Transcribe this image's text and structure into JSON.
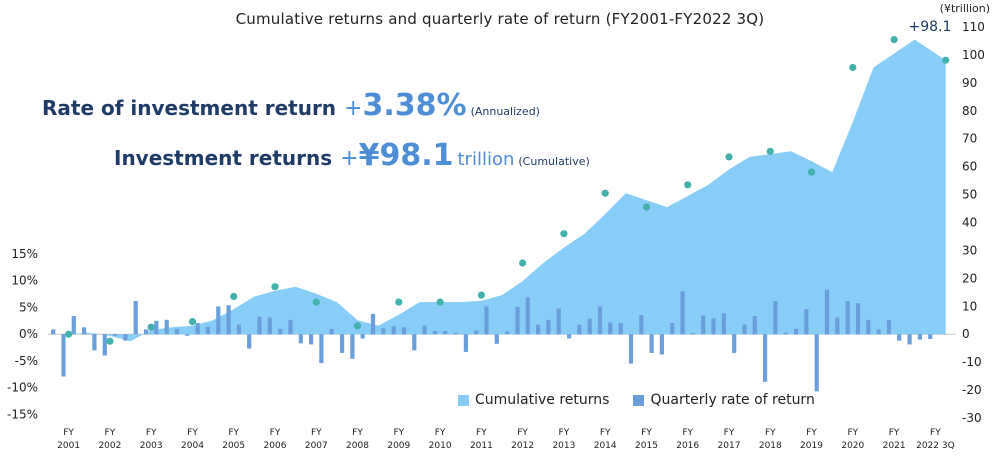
{
  "header": {
    "title": "Cumulative returns and quarterly rate of return (FY2001-FY2022 3Q)"
  },
  "kpis": {
    "rate_label": "Rate of investment return",
    "rate_sign": "+",
    "rate_value": "3.38%",
    "rate_note": "(Annualized)",
    "returns_label": "Investment returns",
    "returns_sign": "+",
    "returns_value": "¥98.1",
    "returns_unit": "trillion",
    "returns_note": "(Cumulative)"
  },
  "legend": {
    "cumulative": "Cumulative returns",
    "quarterly": "Quarterly rate of return"
  },
  "colors": {
    "area": "#88cdf7",
    "bars": "#6a9fdb",
    "markers": "#43b1ac"
  },
  "chart_data": {
    "type": "area",
    "title": "Cumulative returns and quarterly rate of return (FY2001-FY2022 3Q)",
    "x_labels": [
      {
        "fy": "FY",
        "year": "2001"
      },
      {
        "fy": "FY",
        "year": "2002"
      },
      {
        "fy": "FY",
        "year": "2003"
      },
      {
        "fy": "FY",
        "year": "2004"
      },
      {
        "fy": "FY",
        "year": "2005"
      },
      {
        "fy": "FY",
        "year": "2006"
      },
      {
        "fy": "FY",
        "year": "2007"
      },
      {
        "fy": "FY",
        "year": "2008"
      },
      {
        "fy": "FY",
        "year": "2009"
      },
      {
        "fy": "FY",
        "year": "2010"
      },
      {
        "fy": "FY",
        "year": "2011"
      },
      {
        "fy": "FY",
        "year": "2012"
      },
      {
        "fy": "FY",
        "year": "2013"
      },
      {
        "fy": "FY",
        "year": "2014"
      },
      {
        "fy": "FY",
        "year": "2015"
      },
      {
        "fy": "FY",
        "year": "2016"
      },
      {
        "fy": "FY",
        "year": "2017"
      },
      {
        "fy": "FY",
        "year": "2018"
      },
      {
        "fy": "FY",
        "year": "2019"
      },
      {
        "fy": "FY",
        "year": "2020"
      },
      {
        "fy": "FY",
        "year": "2021"
      },
      {
        "fy": "FY",
        "year": "2022 3Q"
      }
    ],
    "left_axis": {
      "label": "",
      "range": [
        -15,
        15
      ],
      "ticks": [
        "15%",
        "10%",
        "5%",
        "0%",
        "-5%",
        "-10%",
        "-15%"
      ],
      "tick_values": [
        15,
        10,
        5,
        0,
        -5,
        -10,
        -15
      ]
    },
    "right_axis": {
      "unit_label": "(¥trillion)",
      "range": [
        -30,
        110
      ],
      "ticks": [
        "110",
        "100",
        "90",
        "80",
        "70",
        "60",
        "50",
        "40",
        "30",
        "20",
        "10",
        "0",
        "-10",
        "-20",
        "-30"
      ],
      "tick_values": [
        110,
        100,
        90,
        80,
        70,
        60,
        50,
        40,
        30,
        20,
        10,
        0,
        -10,
        -20,
        -30
      ]
    },
    "series": [
      {
        "name": "Cumulative returns",
        "type": "area",
        "axis": "right",
        "x": [
          2001.5,
          2002.0,
          2002.5,
          2003.0,
          2003.5,
          2004.0,
          2004.5,
          2005.0,
          2005.5,
          2006.0,
          2006.5,
          2007.0,
          2007.5,
          2008.0,
          2008.5,
          2009.0,
          2009.5,
          2010.0,
          2010.5,
          2011.0,
          2011.5,
          2012.0,
          2012.5,
          2013.0,
          2013.5,
          2014.0,
          2014.5,
          2015.0,
          2015.5,
          2016.0,
          2016.5,
          2017.0,
          2017.5,
          2018.0,
          2018.5,
          2019.0,
          2019.5,
          2020.0,
          2020.5,
          2021.0,
          2021.5,
          2022.0,
          2022.75
        ],
        "values": [
          0,
          0.5,
          -0.6,
          -2.5,
          1.5,
          2.5,
          3,
          5,
          9,
          13.5,
          15.5,
          17,
          14.5,
          11.5,
          5,
          3,
          7,
          11.5,
          11.5,
          11.5,
          12,
          14,
          19,
          25.5,
          31,
          36,
          43,
          50.5,
          48,
          45.5,
          49.5,
          53.5,
          59,
          63.5,
          64.5,
          65.5,
          62,
          58,
          76,
          95.5,
          100.5,
          105.5,
          98.1
        ],
        "markers_x": [
          2001.5,
          2002.5,
          2003.5,
          2004.5,
          2005.5,
          2006.5,
          2007.5,
          2008.5,
          2009.5,
          2010.5,
          2011.5,
          2012.5,
          2013.5,
          2014.5,
          2015.5,
          2016.5,
          2017.5,
          2018.5,
          2019.5,
          2020.5,
          2021.5,
          2022.75
        ],
        "markers": [
          0,
          -2.5,
          2.5,
          4.5,
          13.5,
          17,
          11.5,
          3,
          11.5,
          11.5,
          14,
          25.5,
          36,
          50.5,
          45.5,
          53.5,
          63.5,
          65.5,
          58,
          95.5,
          105.5,
          98.1
        ],
        "end_label": "+98.1"
      },
      {
        "name": "Quarterly rate of return",
        "type": "bar",
        "axis": "left",
        "values": [
          0.9,
          -7.9,
          3.4,
          1.3,
          -3.0,
          -4.0,
          -0.3,
          -1.2,
          6.2,
          0.9,
          2.5,
          2.7,
          1.0,
          -0.3,
          2.1,
          1.4,
          5.2,
          5.4,
          1.8,
          -2.7,
          3.3,
          3.1,
          1.0,
          2.7,
          -1.7,
          -1.9,
          -5.4,
          1.0,
          -3.5,
          -4.6,
          -0.8,
          3.8,
          1.1,
          1.5,
          1.3,
          -3.0,
          1.6,
          0.6,
          0.6,
          0.3,
          -3.3,
          0.7,
          5.2,
          -1.8,
          0.5,
          5.1,
          6.9,
          1.8,
          2.7,
          4.8,
          -0.8,
          1.8,
          2.9,
          5.2,
          2.2,
          2.1,
          -5.5,
          3.6,
          -3.5,
          -3.8,
          2.1,
          8.0,
          0.2,
          3.5,
          3.0,
          3.9,
          -3.5,
          1.8,
          3.4,
          -8.9,
          6.2,
          0.3,
          1.0,
          4.7,
          -10.7,
          8.3,
          3.1,
          6.2,
          5.8,
          2.7,
          0.9,
          2.7,
          -1.2,
          -1.9,
          -1.0,
          -0.9
        ]
      }
    ]
  }
}
